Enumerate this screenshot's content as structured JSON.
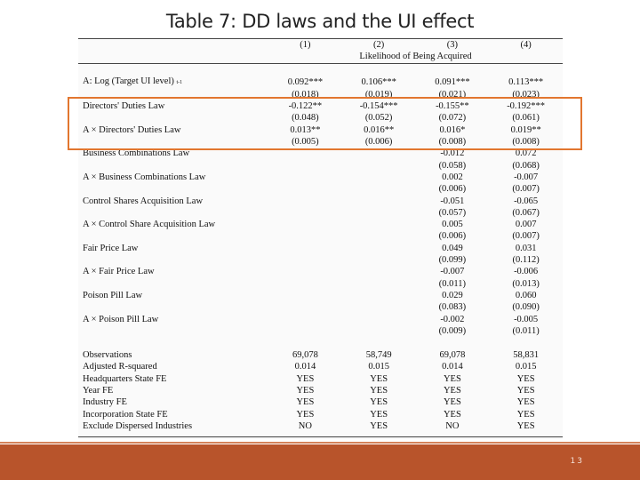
{
  "slide": {
    "title": "Table 7: DD laws and the UI effect",
    "page_number": "13"
  },
  "table": {
    "column_headers": [
      "(1)",
      "(2)",
      "(3)",
      "(4)"
    ],
    "dependent_variable": "Likelihood of Being Acquired",
    "rows": [
      {
        "label": "A: Log (Target UI level)",
        "label_sub": "t-1",
        "values": [
          "0.092***",
          "0.106***",
          "0.091***",
          "0.113***"
        ]
      },
      {
        "label": "",
        "values": [
          "(0.018)",
          "(0.019)",
          "(0.021)",
          "(0.023)"
        ]
      },
      {
        "label": "Directors' Duties Law",
        "values": [
          "-0.122**",
          "-0.154***",
          "-0.155**",
          "-0.192***"
        ]
      },
      {
        "label": "",
        "values": [
          "(0.048)",
          "(0.052)",
          "(0.072)",
          "(0.061)"
        ]
      },
      {
        "label": "A × Directors' Duties Law",
        "values": [
          "0.013**",
          "0.016**",
          "0.016*",
          "0.019**"
        ]
      },
      {
        "label": "",
        "values": [
          "(0.005)",
          "(0.006)",
          "(0.008)",
          "(0.008)"
        ]
      },
      {
        "label": "Business Combinations Law",
        "values": [
          "",
          "",
          "-0.012",
          "0.072"
        ]
      },
      {
        "label": "",
        "values": [
          "",
          "",
          "(0.058)",
          "(0.068)"
        ]
      },
      {
        "label": "A × Business Combinations Law",
        "values": [
          "",
          "",
          "0.002",
          "-0.007"
        ]
      },
      {
        "label": "",
        "values": [
          "",
          "",
          "(0.006)",
          "(0.007)"
        ]
      },
      {
        "label": "Control Shares Acquisition Law",
        "values": [
          "",
          "",
          "-0.051",
          "-0.065"
        ]
      },
      {
        "label": "",
        "values": [
          "",
          "",
          "(0.057)",
          "(0.067)"
        ]
      },
      {
        "label": "A × Control Share Acquisition Law",
        "values": [
          "",
          "",
          "0.005",
          "0.007"
        ]
      },
      {
        "label": "",
        "values": [
          "",
          "",
          "(0.006)",
          "(0.007)"
        ]
      },
      {
        "label": "Fair Price Law",
        "values": [
          "",
          "",
          "0.049",
          "0.031"
        ]
      },
      {
        "label": "",
        "values": [
          "",
          "",
          "(0.099)",
          "(0.112)"
        ]
      },
      {
        "label": "A × Fair Price Law",
        "values": [
          "",
          "",
          "-0.007",
          "-0.006"
        ]
      },
      {
        "label": "",
        "values": [
          "",
          "",
          "(0.011)",
          "(0.013)"
        ]
      },
      {
        "label": "Poison Pill Law",
        "values": [
          "",
          "",
          "0.029",
          "0.060"
        ]
      },
      {
        "label": "",
        "values": [
          "",
          "",
          "(0.083)",
          "(0.090)"
        ]
      },
      {
        "label": "A × Poison Pill Law",
        "values": [
          "",
          "",
          "-0.002",
          "-0.005"
        ]
      },
      {
        "label": "",
        "values": [
          "",
          "",
          "(0.009)",
          "(0.011)"
        ]
      }
    ],
    "stats_rows": [
      {
        "label": "Observations",
        "values": [
          "69,078",
          "58,749",
          "69,078",
          "58,831"
        ]
      },
      {
        "label": "Adjusted R-squared",
        "values": [
          "0.014",
          "0.015",
          "0.014",
          "0.015"
        ]
      },
      {
        "label": "Headquarters State FE",
        "values": [
          "YES",
          "YES",
          "YES",
          "YES"
        ]
      },
      {
        "label": "Year FE",
        "values": [
          "YES",
          "YES",
          "YES",
          "YES"
        ]
      },
      {
        "label": "Industry FE",
        "values": [
          "YES",
          "YES",
          "YES",
          "YES"
        ]
      },
      {
        "label": "Incorporation State FE",
        "values": [
          "YES",
          "YES",
          "YES",
          "YES"
        ]
      },
      {
        "label": "Exclude Dispersed Industries",
        "values": [
          "NO",
          "YES",
          "NO",
          "YES"
        ]
      }
    ]
  },
  "colors": {
    "highlight": "#e2762f",
    "footer": "#b8542b"
  }
}
